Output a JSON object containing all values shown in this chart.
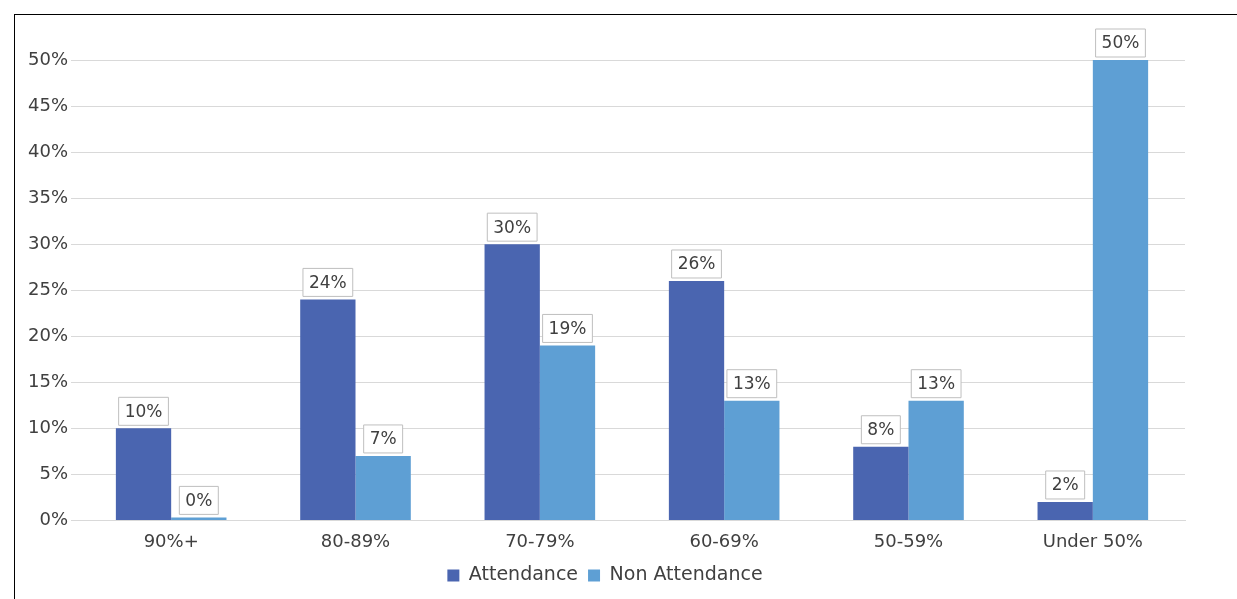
{
  "chart_data": {
    "type": "bar",
    "categories": [
      "90%+",
      "80-89%",
      "70-79%",
      "60-69%",
      "50-59%",
      "Under 50%"
    ],
    "series": [
      {
        "name": "Attendance",
        "color": "#4a65b0",
        "values": [
          10,
          24,
          30,
          26,
          8,
          2
        ],
        "value_labels": [
          "10%",
          "24%",
          "30%",
          "26%",
          "8%",
          "2%"
        ]
      },
      {
        "name": "Non Attendance",
        "color": "#5e9fd4",
        "values": [
          0,
          7,
          19,
          13,
          13,
          50
        ],
        "value_labels": [
          "0%",
          "7%",
          "19%",
          "13%",
          "13%",
          "50%"
        ]
      }
    ],
    "ylim": [
      0,
      50
    ],
    "yticks": [
      {
        "value": 0,
        "label": "0%"
      },
      {
        "value": 5,
        "label": "5%"
      },
      {
        "value": 10,
        "label": "10%"
      },
      {
        "value": 15,
        "label": "15%"
      },
      {
        "value": 20,
        "label": "20%"
      },
      {
        "value": 25,
        "label": "25%"
      },
      {
        "value": 30,
        "label": "30%"
      },
      {
        "value": 35,
        "label": "35%"
      },
      {
        "value": 40,
        "label": "40%"
      },
      {
        "value": 45,
        "label": "45%"
      },
      {
        "value": 50,
        "label": "50%"
      }
    ],
    "grid": "y",
    "legend": "bottom"
  }
}
